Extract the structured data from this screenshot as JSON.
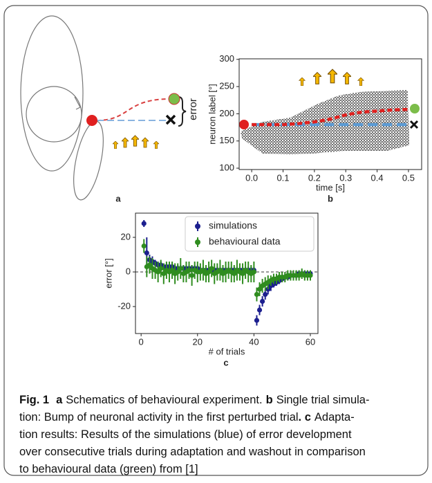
{
  "panel_a": {
    "label": "a",
    "annotation": "error"
  },
  "chart_data": [
    {
      "type": "line",
      "panel_label": "b",
      "xlabel": "time [s]",
      "ylabel": "neuron label [°]",
      "xlim": [
        -0.04,
        0.542
      ],
      "ylim": [
        97.5,
        301
      ],
      "xticks": [
        {
          "value": 0,
          "label": "0.0"
        },
        0.1,
        0.2,
        0.3,
        0.4,
        0.5
      ],
      "yticks": [
        100,
        150,
        200,
        250,
        300
      ],
      "x": [
        0,
        0.1,
        0.15,
        0.2,
        0.25,
        0.3,
        0.35,
        0.4,
        0.45,
        0.5
      ],
      "series": [
        {
          "color": "#5b9bd5",
          "values": [
            180,
            180,
            180,
            180,
            180,
            180,
            180,
            180,
            180,
            180
          ]
        },
        {
          "color": "#e0201e",
          "values": [
            180,
            180,
            182,
            185,
            190,
            198,
            203,
            205,
            207,
            208
          ]
        }
      ]
    },
    {
      "type": "errorbar",
      "panel_label": "c",
      "xlabel": "# of trials",
      "ylabel": "error [°]",
      "xlim": [
        -2,
        62.7
      ],
      "ylim": [
        -35.6,
        34
      ],
      "xticks": [
        0,
        20,
        40,
        60
      ],
      "yticks": [
        -20,
        0,
        20
      ],
      "x": [
        1,
        2,
        3,
        4,
        5,
        6,
        7,
        8,
        9,
        10,
        11,
        12,
        13,
        14,
        15,
        16,
        17,
        18,
        19,
        20,
        21,
        22,
        23,
        24,
        25,
        26,
        27,
        28,
        29,
        30,
        31,
        32,
        33,
        34,
        35,
        36,
        37,
        38,
        39,
        40,
        41,
        42,
        43,
        44,
        45,
        46,
        47,
        48,
        49,
        50,
        51,
        52,
        53,
        54,
        55,
        56,
        57,
        58,
        59,
        60
      ],
      "series": [
        {
          "name": "simulations",
          "color": "#1c1f8f",
          "values": [
            28,
            11,
            7,
            6,
            5,
            4,
            4,
            3,
            3,
            3,
            3,
            2,
            2,
            2,
            2,
            2,
            2,
            2,
            2,
            2,
            1,
            1,
            1,
            1,
            1,
            1,
            1,
            1,
            1,
            1,
            1,
            1,
            1,
            1,
            1,
            1,
            1,
            1,
            1,
            1,
            -28,
            -22,
            -17,
            -13,
            -10,
            -8,
            -7,
            -6,
            -5,
            -4,
            -3,
            -3,
            -2,
            -2,
            -2,
            -1,
            -1,
            -1,
            -1,
            -1
          ],
          "errors": [
            2,
            9,
            3,
            3,
            2,
            2,
            2,
            2,
            2,
            2,
            2,
            2,
            2,
            2,
            2,
            2,
            2,
            2,
            2,
            2,
            2,
            2,
            2,
            2,
            2,
            2,
            2,
            2,
            2,
            2,
            2,
            2,
            2,
            2,
            2,
            2,
            2,
            2,
            2,
            2,
            3,
            3,
            3,
            3,
            3,
            3,
            2,
            2,
            2,
            2,
            2,
            2,
            2,
            2,
            2,
            2,
            2,
            2,
            2,
            2
          ]
        },
        {
          "name": "behavioural data",
          "color": "#2f8c1f",
          "values": [
            15,
            3,
            4,
            2,
            1,
            0,
            2,
            -1,
            1,
            0,
            1,
            -1,
            0,
            2,
            -1,
            0,
            1,
            -2,
            1,
            0,
            0,
            1,
            -1,
            0,
            2,
            -1,
            0,
            1,
            -1,
            0,
            1,
            0,
            -1,
            1,
            0,
            -1,
            1,
            0,
            -1,
            0,
            -13,
            -10,
            -8,
            -7,
            -6,
            -5,
            -4,
            -4,
            -3,
            -3,
            -3,
            -2,
            -2,
            -2,
            -2,
            -2,
            -1,
            -2,
            -2,
            -2
          ],
          "errors": [
            4,
            6,
            5,
            6,
            5,
            6,
            5,
            6,
            5,
            6,
            5,
            6,
            5,
            6,
            5,
            6,
            5,
            6,
            5,
            6,
            5,
            6,
            5,
            6,
            5,
            6,
            5,
            6,
            5,
            6,
            5,
            6,
            5,
            6,
            5,
            6,
            5,
            6,
            5,
            6,
            4,
            4,
            4,
            4,
            4,
            3,
            3,
            3,
            3,
            3,
            3,
            3,
            3,
            3,
            3,
            3,
            3,
            3,
            3,
            3
          ]
        }
      ]
    }
  ],
  "caption": [
    [
      "Fig. 1",
      "a",
      "Schematics of behavioural experiment.",
      "b",
      "Single trial simula-"
    ],
    [
      "tion: Bump of neuronal activity in the first perturbed trial",
      ". c",
      "Adapta-"
    ],
    [
      "tion results: Results of the simulations (blue) of error development"
    ],
    [
      "over consecutive trials during adaptation and washout in comparison"
    ],
    [
      "to behavioural data (green) from [1]"
    ]
  ]
}
